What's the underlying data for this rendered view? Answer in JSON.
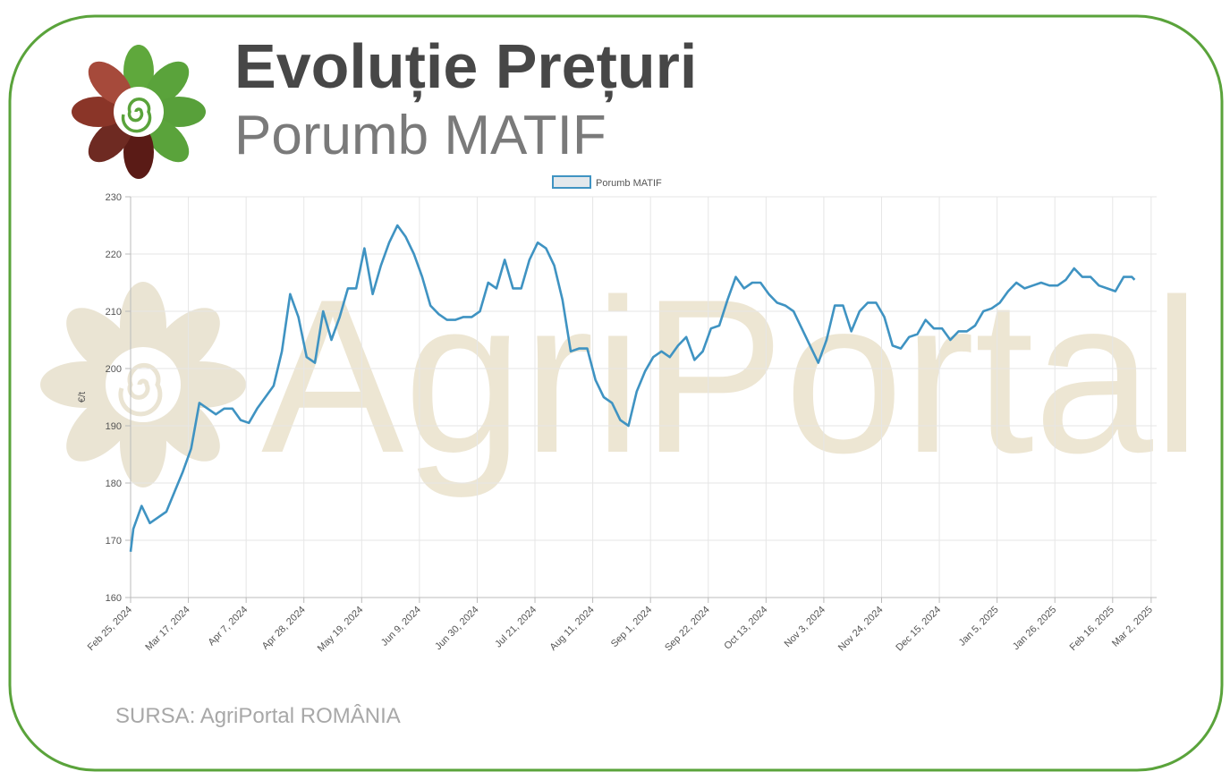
{
  "header": {
    "title": "Evoluție Prețuri",
    "subtitle": "Porumb MATIF"
  },
  "watermark": "AgriPortal",
  "source": "SURSA: AgriPortal ROMÂNIA",
  "chart_data": {
    "type": "line",
    "y_label": "€/t",
    "grid": true,
    "legend": "top",
    "xlim": [
      "Feb 25, 2024",
      "Mar 4, 2025"
    ],
    "xticks": [
      "Feb 25, 2024",
      "Mar 17, 2024",
      "Apr 7, 2024",
      "Apr 28, 2024",
      "May 19, 2024",
      "Jun 9, 2024",
      "Jun 30, 2024",
      "Jul 21, 2024",
      "Aug 11, 2024",
      "Sep 1, 2024",
      "Sep 22, 2024",
      "Oct 13, 2024",
      "Nov 3, 2024",
      "Nov 24, 2024",
      "Dec 15, 2024",
      "Jan 5, 2025",
      "Jan 26, 2025",
      "Feb 16, 2025",
      "Mar 2, 2025"
    ],
    "ylim": [
      160,
      230
    ],
    "yticks": [
      160,
      170,
      180,
      190,
      200,
      210,
      220,
      230
    ],
    "x": [
      "Feb 25, 2024",
      "Feb 26, 2024",
      "Feb 29, 2024",
      "Mar 3, 2024",
      "Mar 6, 2024",
      "Mar 9, 2024",
      "Mar 12, 2024",
      "Mar 15, 2024",
      "Mar 18, 2024",
      "Mar 21, 2024",
      "Mar 24, 2024",
      "Mar 27, 2024",
      "Mar 30, 2024",
      "Apr 2, 2024",
      "Apr 5, 2024",
      "Apr 8, 2024",
      "Apr 11, 2024",
      "Apr 14, 2024",
      "Apr 17, 2024",
      "Apr 20, 2024",
      "Apr 23, 2024",
      "Apr 26, 2024",
      "Apr 29, 2024",
      "May 2, 2024",
      "May 5, 2024",
      "May 8, 2024",
      "May 11, 2024",
      "May 14, 2024",
      "May 17, 2024",
      "May 20, 2024",
      "May 23, 2024",
      "May 26, 2024",
      "May 29, 2024",
      "Jun 1, 2024",
      "Jun 4, 2024",
      "Jun 7, 2024",
      "Jun 10, 2024",
      "Jun 13, 2024",
      "Jun 16, 2024",
      "Jun 19, 2024",
      "Jun 22, 2024",
      "Jun 25, 2024",
      "Jun 28, 2024",
      "Jul 1, 2024",
      "Jul 4, 2024",
      "Jul 7, 2024",
      "Jul 10, 2024",
      "Jul 13, 2024",
      "Jul 16, 2024",
      "Jul 19, 2024",
      "Jul 22, 2024",
      "Jul 25, 2024",
      "Jul 28, 2024",
      "Jul 31, 2024",
      "Aug 3, 2024",
      "Aug 6, 2024",
      "Aug 9, 2024",
      "Aug 12, 2024",
      "Aug 15, 2024",
      "Aug 18, 2024",
      "Aug 21, 2024",
      "Aug 24, 2024",
      "Aug 27, 2024",
      "Aug 30, 2024",
      "Sep 2, 2024",
      "Sep 5, 2024",
      "Sep 8, 2024",
      "Sep 11, 2024",
      "Sep 14, 2024",
      "Sep 17, 2024",
      "Sep 20, 2024",
      "Sep 23, 2024",
      "Sep 26, 2024",
      "Sep 29, 2024",
      "Oct 2, 2024",
      "Oct 5, 2024",
      "Oct 8, 2024",
      "Oct 11, 2024",
      "Oct 14, 2024",
      "Oct 17, 2024",
      "Oct 20, 2024",
      "Oct 23, 2024",
      "Oct 26, 2024",
      "Oct 29, 2024",
      "Nov 1, 2024",
      "Nov 4, 2024",
      "Nov 7, 2024",
      "Nov 10, 2024",
      "Nov 13, 2024",
      "Nov 16, 2024",
      "Nov 19, 2024",
      "Nov 22, 2024",
      "Nov 25, 2024",
      "Nov 28, 2024",
      "Dec 1, 2024",
      "Dec 4, 2024",
      "Dec 7, 2024",
      "Dec 10, 2024",
      "Dec 13, 2024",
      "Dec 16, 2024",
      "Dec 19, 2024",
      "Dec 22, 2024",
      "Dec 25, 2024",
      "Dec 28, 2024",
      "Dec 31, 2024",
      "Jan 3, 2025",
      "Jan 6, 2025",
      "Jan 9, 2025",
      "Jan 12, 2025",
      "Jan 15, 2025",
      "Jan 18, 2025",
      "Jan 21, 2025",
      "Jan 24, 2025",
      "Jan 27, 2025",
      "Jan 30, 2025",
      "Feb 2, 2025",
      "Feb 5, 2025",
      "Feb 8, 2025",
      "Feb 11, 2025",
      "Feb 14, 2025",
      "Feb 17, 2025",
      "Feb 20, 2025",
      "Feb 23, 2025",
      "Feb 24, 2025"
    ],
    "series": [
      {
        "name": "Porumb MATIF",
        "color": "#3f93c2",
        "values": [
          168,
          172,
          176,
          173,
          174,
          175,
          178.5,
          182,
          186,
          194,
          193,
          192,
          193,
          193,
          191,
          190.5,
          193,
          195,
          197,
          203,
          213,
          209,
          202,
          201,
          210,
          205,
          209,
          214,
          214,
          221,
          213,
          218,
          222,
          225,
          223,
          220,
          216,
          211,
          209.5,
          208.5,
          208.5,
          209,
          209,
          210,
          215,
          214,
          219,
          214,
          214,
          219,
          222,
          221,
          218,
          212,
          203,
          203.5,
          203.5,
          198,
          195,
          194,
          191,
          190,
          196,
          199.5,
          202,
          203,
          202,
          204,
          205.5,
          201.5,
          203,
          207,
          207.5,
          212,
          216,
          214,
          215,
          215,
          213,
          211.5,
          211,
          210,
          207,
          204,
          201,
          205,
          211,
          211,
          206.5,
          210,
          211.5,
          211.5,
          209,
          204,
          203.5,
          205.5,
          206,
          208.5,
          207,
          207,
          205,
          206.5,
          206.5,
          207.5,
          210,
          210.5,
          211.5,
          213.5,
          215,
          214,
          214.5,
          215,
          214.5,
          214.5,
          215.5,
          217.5,
          216,
          216,
          214.5,
          214,
          213.5,
          216,
          216,
          215.5
        ]
      }
    ]
  }
}
